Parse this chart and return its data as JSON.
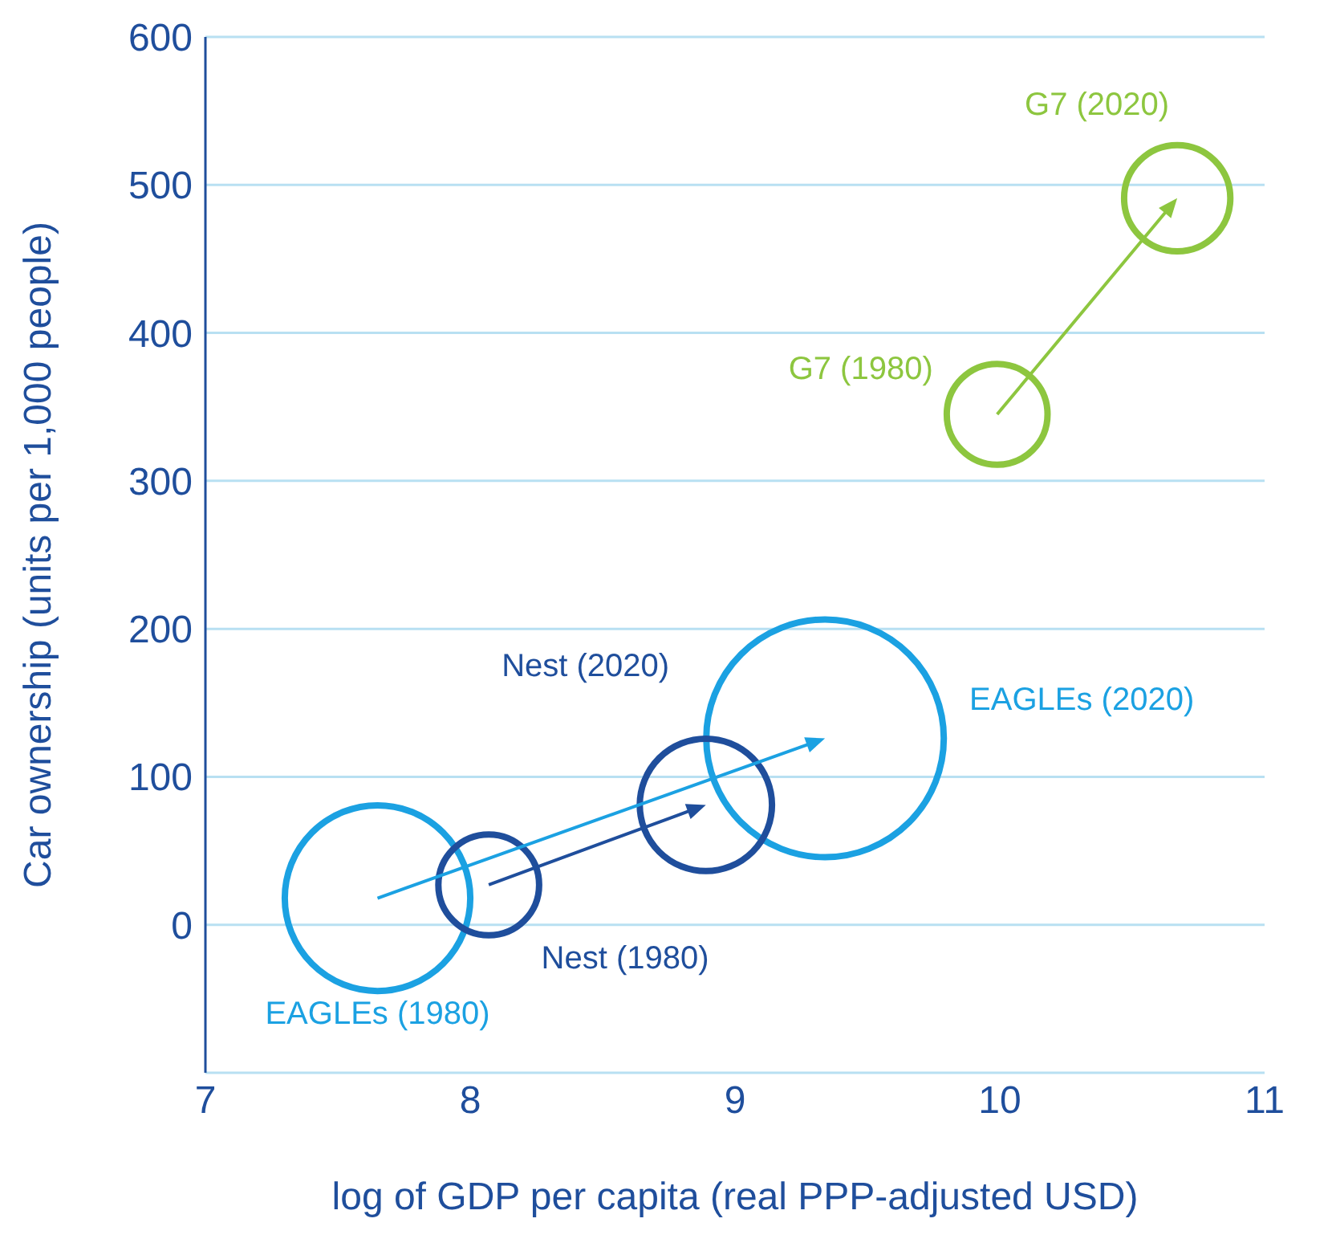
{
  "chart_data": {
    "type": "bubble",
    "xlabel": "log of GDP per capita (real PPP-adjusted USD)",
    "ylabel": "Car ownership (units per 1,000 people)",
    "xlim": [
      7,
      11
    ],
    "xticks": [
      7,
      8,
      9,
      10,
      11
    ],
    "ylim": [
      -100,
      600
    ],
    "yticks": [
      {
        "value": -100,
        "label": null
      },
      0,
      100,
      200,
      300,
      400,
      500,
      600
    ],
    "grid": "y",
    "relative": false,
    "series": [
      {
        "color": "#1ba1e2",
        "x": [
          7.65,
          9.34
        ],
        "values": [
          18,
          126
        ],
        "sizes": [
          0.61,
          1
        ]
      },
      {
        "color": "#1f4e9c",
        "x": [
          8.07,
          8.89
        ],
        "values": [
          27,
          81
        ],
        "sizes": [
          0.18,
          0.31
        ]
      },
      {
        "color": "#8dc63f",
        "x": [
          9.99,
          10.67
        ],
        "values": [
          345,
          491
        ],
        "sizes": [
          0.18,
          0.2
        ]
      }
    ],
    "annotations": [
      "EAGLEs (1980)",
      "Nest (1980)",
      "Nest (2020)",
      "EAGLEs (2020)",
      "G7 (1980)",
      "G7 (2020)"
    ]
  }
}
